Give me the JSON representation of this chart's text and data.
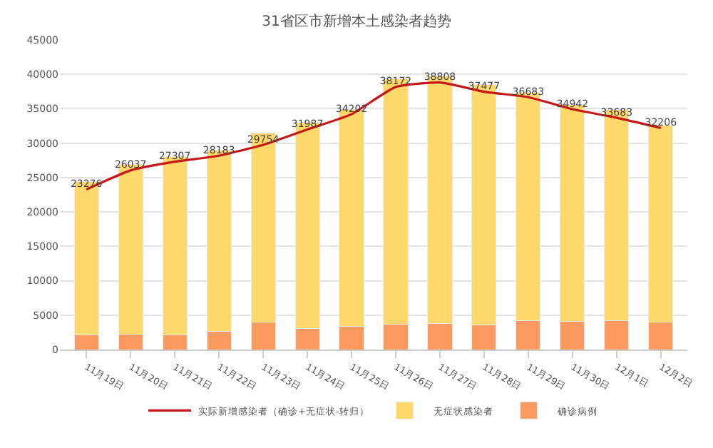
{
  "chart_data": {
    "type": "bar",
    "title": "31省区市新增本土感染者趋势",
    "stacked": true,
    "categories": [
      "11月19日",
      "11月20日",
      "11月21日",
      "11月22日",
      "11月23日",
      "11月24日",
      "11月25日",
      "11月26日",
      "11月27日",
      "11月28日",
      "11月29日",
      "11月30日",
      "12月1日",
      "12月2日"
    ],
    "series": [
      {
        "name": "确诊病例",
        "color": "#fa9a5e",
        "values": [
          2150,
          2200,
          2100,
          2650,
          4000,
          3050,
          3400,
          3650,
          3800,
          3600,
          4200,
          4050,
          4200,
          4000
        ]
      },
      {
        "name": "无症状感染者",
        "color": "#fdd86a",
        "values": [
          22250,
          24700,
          26000,
          26350,
          27500,
          29950,
          31500,
          35750,
          36000,
          34900,
          33200,
          31550,
          30700,
          28600
        ]
      },
      {
        "name": "实际新增感染者（确诊+无症状-转归）",
        "type": "line",
        "color": "#c8171a",
        "values": [
          23276,
          26037,
          27307,
          28183,
          29754,
          31987,
          34202,
          38172,
          38808,
          37477,
          36683,
          34942,
          33683,
          32206
        ],
        "value_labels": [
          "23276",
          "26037",
          "27307",
          "28183",
          "29754",
          "31987",
          "34202",
          "38172",
          "38808",
          "37477",
          "36683",
          "34942",
          "33683",
          "32206"
        ]
      }
    ],
    "ylim": [
      0,
      45000
    ],
    "yticks": [
      0,
      5000,
      10000,
      15000,
      20000,
      25000,
      30000,
      35000,
      40000,
      45000
    ],
    "grid": "y",
    "legend": "bottom",
    "marker": "none",
    "line_style": "solid"
  }
}
